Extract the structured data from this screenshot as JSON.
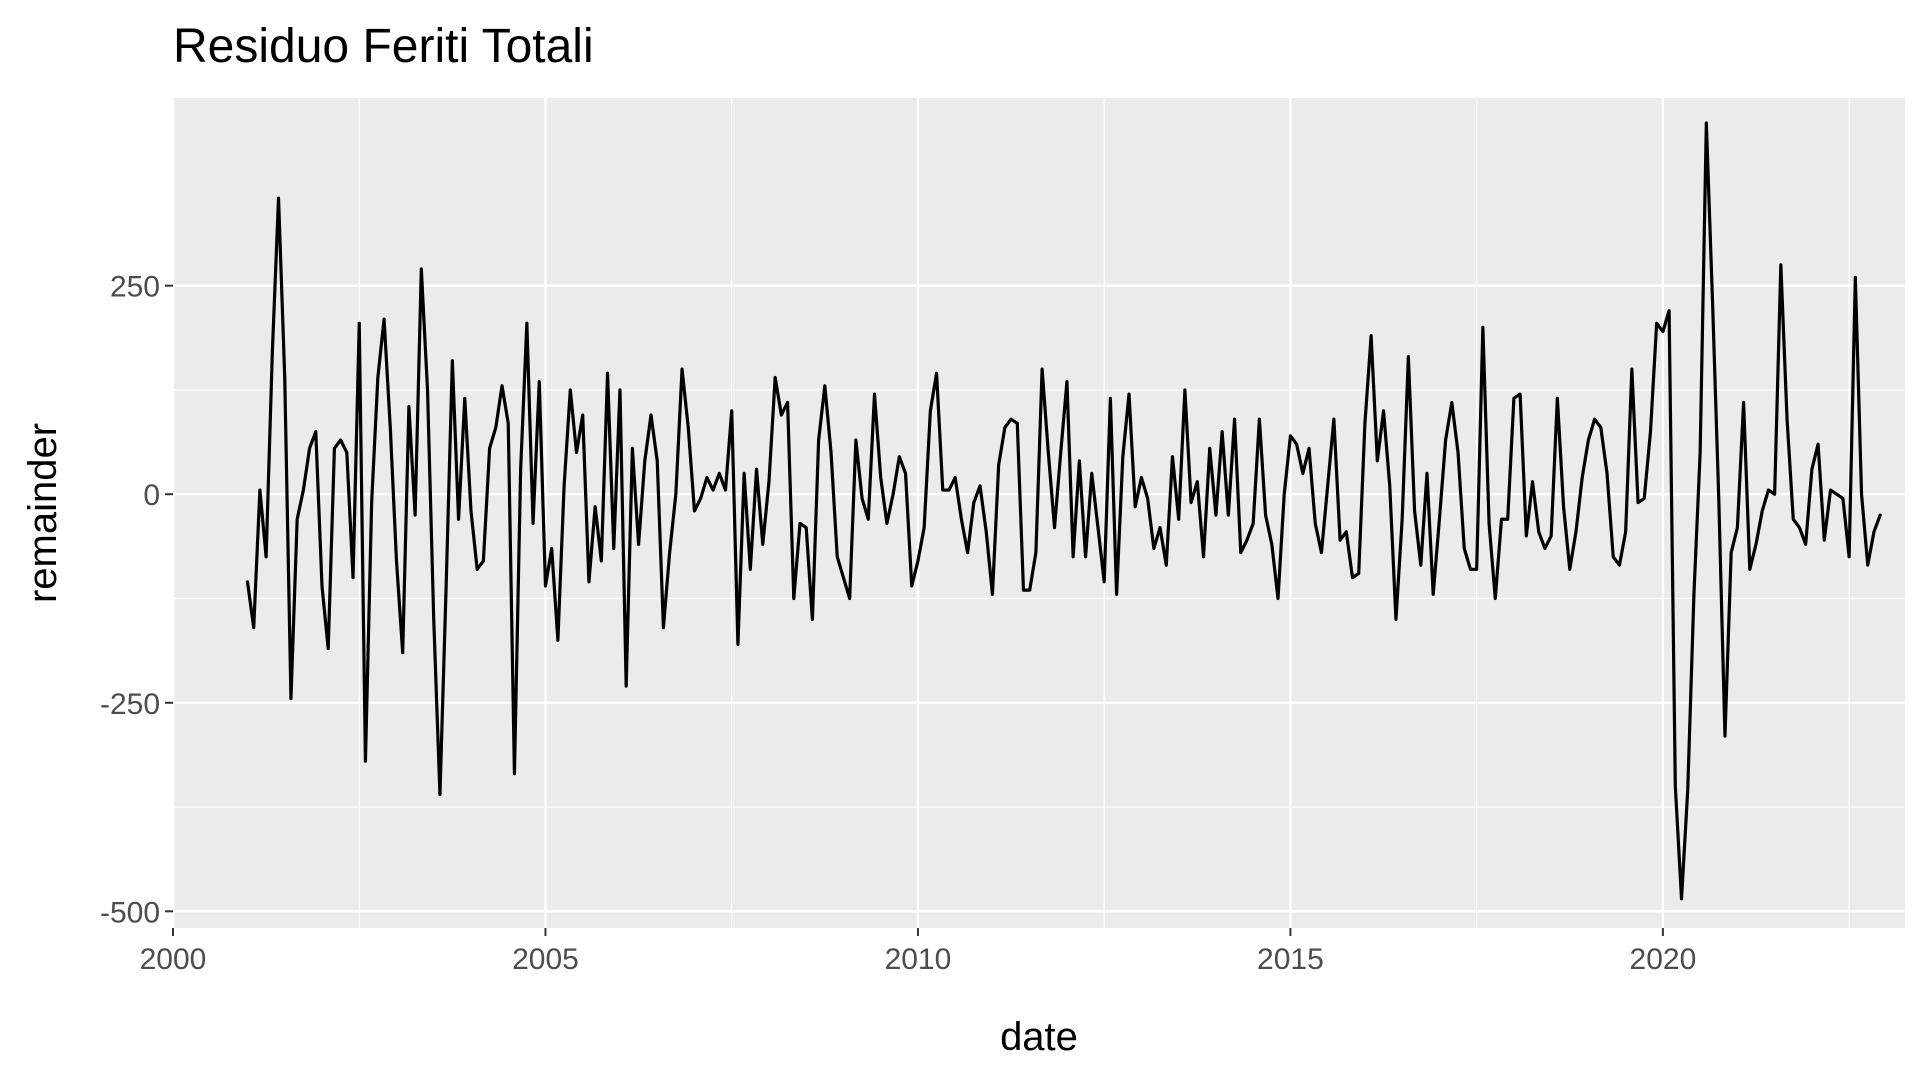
{
  "chart_data": {
    "type": "line",
    "title": "Residuo Feriti Totali",
    "xlabel": "date",
    "ylabel": "remainder",
    "x_axis_type": "date",
    "xlim": [
      "2000-01-01",
      "2023-04-01"
    ],
    "ylim": [
      -520,
      475
    ],
    "x_ticks": [
      2000,
      2005,
      2010,
      2015,
      2020
    ],
    "x_tick_labels": [
      "2000",
      "2005",
      "2010",
      "2015",
      "2020"
    ],
    "y_ticks": [
      250,
      0,
      -250,
      -500
    ],
    "y_tick_labels": [
      "250",
      "0",
      "-250",
      "-500"
    ],
    "grid": true,
    "legend": "none",
    "colors": {
      "panel": "#EBEBEB",
      "grid": "#FFFFFF",
      "line": "#000000",
      "text": "#4D4D4D",
      "title": "#000000"
    },
    "series": [
      {
        "x": [
          "2001-01",
          "2001-02",
          "2001-03",
          "2001-04",
          "2001-05",
          "2001-06",
          "2001-07",
          "2001-08",
          "2001-09",
          "2001-10",
          "2001-11",
          "2001-12",
          "2002-01",
          "2002-02",
          "2002-03",
          "2002-04",
          "2002-05",
          "2002-06",
          "2002-07",
          "2002-08",
          "2002-09",
          "2002-10",
          "2002-11",
          "2002-12",
          "2003-01",
          "2003-02",
          "2003-03",
          "2003-04",
          "2003-05",
          "2003-06",
          "2003-07",
          "2003-08",
          "2003-09",
          "2003-10",
          "2003-11",
          "2003-12",
          "2004-01",
          "2004-02",
          "2004-03",
          "2004-04",
          "2004-05",
          "2004-06",
          "2004-07",
          "2004-08",
          "2004-09",
          "2004-10",
          "2004-11",
          "2004-12",
          "2005-01",
          "2005-02",
          "2005-03",
          "2005-04",
          "2005-05",
          "2005-06",
          "2005-07",
          "2005-08",
          "2005-09",
          "2005-10",
          "2005-11",
          "2005-12",
          "2006-01",
          "2006-02",
          "2006-03",
          "2006-04",
          "2006-05",
          "2006-06",
          "2006-07",
          "2006-08",
          "2006-09",
          "2006-10",
          "2006-11",
          "2006-12",
          "2007-01",
          "2007-02",
          "2007-03",
          "2007-04",
          "2007-05",
          "2007-06",
          "2007-07",
          "2007-08",
          "2007-09",
          "2007-10",
          "2007-11",
          "2007-12",
          "2008-01",
          "2008-02",
          "2008-03",
          "2008-04",
          "2008-05",
          "2008-06",
          "2008-07",
          "2008-08",
          "2008-09",
          "2008-10",
          "2008-11",
          "2008-12",
          "2009-01",
          "2009-02",
          "2009-03",
          "2009-04",
          "2009-05",
          "2009-06",
          "2009-07",
          "2009-08",
          "2009-09",
          "2009-10",
          "2009-11",
          "2009-12",
          "2010-01",
          "2010-02",
          "2010-03",
          "2010-04",
          "2010-05",
          "2010-06",
          "2010-07",
          "2010-08",
          "2010-09",
          "2010-10",
          "2010-11",
          "2010-12",
          "2011-01",
          "2011-02",
          "2011-03",
          "2011-04",
          "2011-05",
          "2011-06",
          "2011-07",
          "2011-08",
          "2011-09",
          "2011-10",
          "2011-11",
          "2011-12",
          "2012-01",
          "2012-02",
          "2012-03",
          "2012-04",
          "2012-05",
          "2012-06",
          "2012-07",
          "2012-08",
          "2012-09",
          "2012-10",
          "2012-11",
          "2012-12",
          "2013-01",
          "2013-02",
          "2013-03",
          "2013-04",
          "2013-05",
          "2013-06",
          "2013-07",
          "2013-08",
          "2013-09",
          "2013-10",
          "2013-11",
          "2013-12",
          "2014-01",
          "2014-02",
          "2014-03",
          "2014-04",
          "2014-05",
          "2014-06",
          "2014-07",
          "2014-08",
          "2014-09",
          "2014-10",
          "2014-11",
          "2014-12",
          "2015-01",
          "2015-02",
          "2015-03",
          "2015-04",
          "2015-05",
          "2015-06",
          "2015-07",
          "2015-08",
          "2015-09",
          "2015-10",
          "2015-11",
          "2015-12",
          "2016-01",
          "2016-02",
          "2016-03",
          "2016-04",
          "2016-05",
          "2016-06",
          "2016-07",
          "2016-08",
          "2016-09",
          "2016-10",
          "2016-11",
          "2016-12",
          "2017-01",
          "2017-02",
          "2017-03",
          "2017-04",
          "2017-05",
          "2017-06",
          "2017-07",
          "2017-08",
          "2017-09",
          "2017-10",
          "2017-11",
          "2017-12",
          "2018-01",
          "2018-02",
          "2018-03",
          "2018-04",
          "2018-05",
          "2018-06",
          "2018-07",
          "2018-08",
          "2018-09",
          "2018-10",
          "2018-11",
          "2018-12",
          "2019-01",
          "2019-02",
          "2019-03",
          "2019-04",
          "2019-05",
          "2019-06",
          "2019-07",
          "2019-08",
          "2019-09",
          "2019-10",
          "2019-11",
          "2019-12",
          "2020-01",
          "2020-02",
          "2020-03",
          "2020-04",
          "2020-05",
          "2020-06",
          "2020-07",
          "2020-08",
          "2020-09",
          "2020-10",
          "2020-11",
          "2020-12",
          "2021-01",
          "2021-02",
          "2021-03",
          "2021-04",
          "2021-05",
          "2021-06",
          "2021-07",
          "2021-08",
          "2021-09",
          "2021-10",
          "2021-11",
          "2021-12",
          "2022-01",
          "2022-02",
          "2022-03",
          "2022-04",
          "2022-05",
          "2022-06",
          "2022-07",
          "2022-08",
          "2022-09",
          "2022-10",
          "2022-11",
          "2022-12"
        ],
        "y": [
          -105,
          -160,
          5,
          -75,
          170,
          355,
          140,
          -245,
          -30,
          5,
          55,
          75,
          -110,
          -185,
          55,
          65,
          50,
          -100,
          205,
          -320,
          -10,
          140,
          210,
          80,
          -80,
          -190,
          105,
          -25,
          270,
          125,
          -150,
          -360,
          -110,
          160,
          -30,
          115,
          -20,
          -90,
          -80,
          55,
          80,
          130,
          85,
          -335,
          30,
          205,
          -35,
          135,
          -110,
          -65,
          -175,
          10,
          125,
          50,
          95,
          -105,
          -15,
          -80,
          145,
          -65,
          125,
          -230,
          55,
          -60,
          40,
          95,
          40,
          -160,
          -70,
          0,
          150,
          80,
          -20,
          -5,
          20,
          5,
          25,
          5,
          100,
          -180,
          25,
          -90,
          30,
          -60,
          15,
          140,
          95,
          110,
          -125,
          -35,
          -40,
          -150,
          65,
          130,
          50,
          -75,
          -100,
          -125,
          65,
          -5,
          -30,
          120,
          20,
          -35,
          0,
          45,
          25,
          -110,
          -80,
          -40,
          100,
          145,
          5,
          5,
          20,
          -30,
          -70,
          -10,
          10,
          -45,
          -120,
          35,
          80,
          90,
          85,
          -115,
          -115,
          -70,
          150,
          50,
          -40,
          50,
          135,
          -75,
          40,
          -75,
          25,
          -40,
          -105,
          115,
          -120,
          45,
          120,
          -15,
          20,
          -5,
          -65,
          -40,
          -85,
          45,
          -30,
          125,
          -10,
          15,
          -75,
          55,
          -25,
          75,
          -25,
          90,
          -70,
          -55,
          -35,
          90,
          -25,
          -60,
          -125,
          0,
          70,
          60,
          25,
          55,
          -35,
          -70,
          10,
          90,
          -55,
          -45,
          -100,
          -95,
          85,
          190,
          40,
          100,
          10,
          -150,
          -30,
          165,
          -20,
          -85,
          25,
          -120,
          -30,
          65,
          110,
          50,
          -65,
          -90,
          -90,
          200,
          -35,
          -125,
          -30,
          -30,
          115,
          120,
          -50,
          15,
          -45,
          -65,
          -50,
          115,
          -15,
          -90,
          -45,
          20,
          65,
          90,
          80,
          25,
          -75,
          -85,
          -45,
          150,
          -10,
          -5,
          75,
          205,
          195,
          220,
          -350,
          -485,
          -355,
          -120,
          50,
          445,
          230,
          -5,
          -290,
          -70,
          -40,
          110,
          -90,
          -60,
          -20,
          5,
          0,
          275,
          90,
          -30,
          -40,
          -60,
          30,
          60,
          -55,
          5,
          0,
          -5,
          -75,
          260,
          0,
          -85,
          -45,
          -25
        ]
      }
    ]
  }
}
